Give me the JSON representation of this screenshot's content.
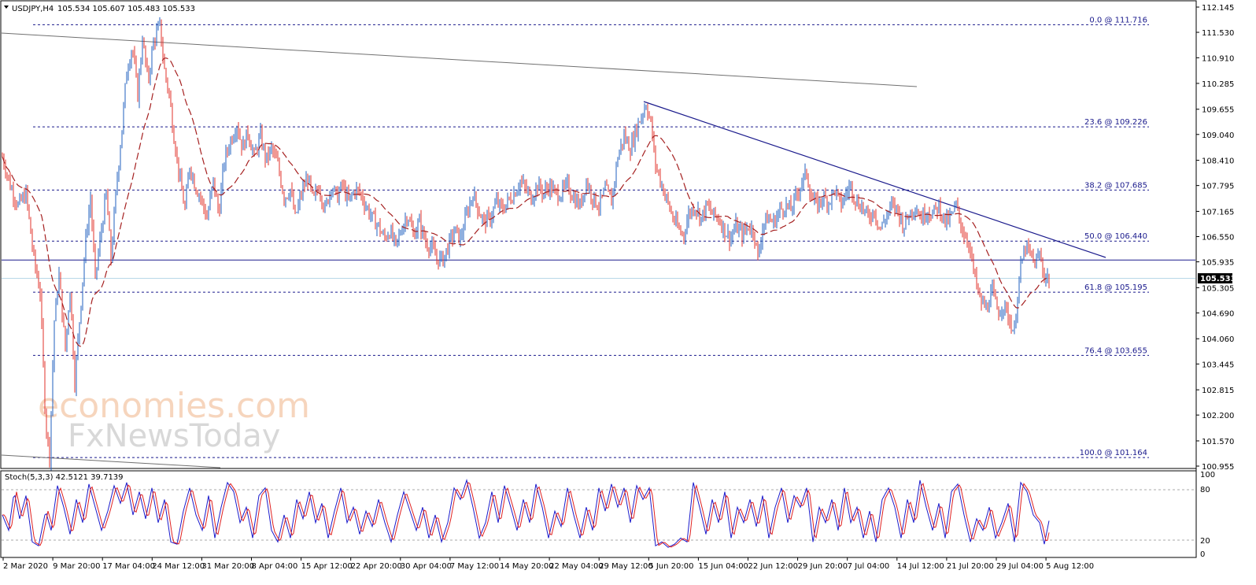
{
  "header": {
    "symbol": "USDJPY,H4",
    "ohlc": "105.534 105.607 105.483 105.533"
  },
  "price_badge": "105.533",
  "watermark": {
    "line1": "economies.com",
    "line2": "FxNewsToday"
  },
  "stoch": {
    "title": "Stoch(5,3,3) 42.5121 39.7139",
    "levels": [
      "100",
      "80",
      "20",
      "0"
    ]
  },
  "colors": {
    "bull": "#1f5fbf",
    "bear": "#e0302a",
    "ma": "#a52020",
    "trend": "#1a1a8c",
    "fib": "#1a1a8c",
    "support": "#1a1a8c",
    "stoch_main": "#1a1acc",
    "stoch_signal": "#e02020"
  },
  "chart_data": {
    "type": "candlestick",
    "y_ticks": [
      "112.145",
      "111.530",
      "110.910",
      "110.285",
      "109.655",
      "109.040",
      "108.410",
      "107.795",
      "107.165",
      "106.550",
      "105.935",
      "105.305",
      "104.690",
      "104.060",
      "103.445",
      "102.815",
      "102.200",
      "101.570",
      "100.955"
    ],
    "x_labels": [
      "2 Mar 2020",
      "9 Mar 20:00",
      "17 Mar 04:00",
      "24 Mar 12:00",
      "31 Mar 20:00",
      "8 Apr 04:00",
      "15 Apr 12:00",
      "22 Apr 20:00",
      "30 Apr 04:00",
      "7 May 12:00",
      "14 May 20:00",
      "22 May 04:00",
      "29 May 12:00",
      "5 Jun 20:00",
      "15 Jun 04:00",
      "22 Jun 12:00",
      "29 Jun 20:00",
      "7 Jul 04:00",
      "14 Jul 12:00",
      "21 Jul 20:00",
      "29 Jul 04:00",
      "5 Aug 12:00"
    ],
    "fib_levels": [
      {
        "label": "0.0 @ 111.716",
        "value": 111.716
      },
      {
        "label": "23.6 @ 109.226",
        "value": 109.226
      },
      {
        "label": "38.2 @ 107.685",
        "value": 107.685
      },
      {
        "label": "50.0 @ 106.440",
        "value": 106.44
      },
      {
        "label": "61.8 @ 105.195",
        "value": 105.195
      },
      {
        "label": "76.4 @ 103.655",
        "value": 103.655
      },
      {
        "label": "100.0 @ 101.164",
        "value": 101.164
      }
    ],
    "support_level": 105.98,
    "current_price": 105.533,
    "price_path": [
      [
        0,
        108.5
      ],
      [
        10,
        107.8
      ],
      [
        20,
        107.3
      ],
      [
        30,
        107.6
      ],
      [
        40,
        106.0
      ],
      [
        48,
        105.2
      ],
      [
        55,
        102.0
      ],
      [
        60,
        101.2
      ],
      [
        66,
        104.5
      ],
      [
        72,
        105.6
      ],
      [
        80,
        103.8
      ],
      [
        86,
        105.3
      ],
      [
        92,
        103.0
      ],
      [
        100,
        105.0
      ],
      [
        106,
        106.5
      ],
      [
        112,
        107.5
      ],
      [
        118,
        105.5
      ],
      [
        125,
        106.6
      ],
      [
        132,
        107.6
      ],
      [
        138,
        106.0
      ],
      [
        145,
        107.8
      ],
      [
        152,
        109.2
      ],
      [
        158,
        110.6
      ],
      [
        165,
        111.2
      ],
      [
        172,
        110.0
      ],
      [
        178,
        111.4
      ],
      [
        185,
        110.3
      ],
      [
        192,
        111.3
      ],
      [
        200,
        111.7
      ],
      [
        206,
        110.6
      ],
      [
        212,
        110.0
      ],
      [
        218,
        109.0
      ],
      [
        225,
        108.0
      ],
      [
        232,
        107.2
      ],
      [
        238,
        108.3
      ],
      [
        245,
        107.8
      ],
      [
        252,
        107.5
      ],
      [
        260,
        107.0
      ],
      [
        268,
        107.9
      ],
      [
        275,
        107.1
      ],
      [
        282,
        108.4
      ],
      [
        290,
        108.9
      ],
      [
        298,
        109.3
      ],
      [
        305,
        108.7
      ],
      [
        312,
        109.1
      ],
      [
        320,
        108.5
      ],
      [
        328,
        109.0
      ],
      [
        335,
        108.4
      ],
      [
        342,
        108.7
      ],
      [
        350,
        108.3
      ],
      [
        358,
        107.5
      ],
      [
        366,
        107.7
      ],
      [
        372,
        107.0
      ],
      [
        380,
        107.6
      ],
      [
        388,
        108.0
      ],
      [
        395,
        107.4
      ],
      [
        402,
        107.8
      ],
      [
        410,
        107.2
      ],
      [
        418,
        107.8
      ],
      [
        425,
        107.5
      ],
      [
        432,
        107.8
      ],
      [
        440,
        107.4
      ],
      [
        448,
        107.7
      ],
      [
        455,
        107.6
      ],
      [
        462,
        107.3
      ],
      [
        470,
        107.0
      ],
      [
        478,
        106.8
      ],
      [
        485,
        106.5
      ],
      [
        492,
        106.7
      ],
      [
        500,
        106.3
      ],
      [
        508,
        106.8
      ],
      [
        515,
        107.1
      ],
      [
        522,
        106.6
      ],
      [
        530,
        106.9
      ],
      [
        538,
        106.4
      ],
      [
        545,
        106.3
      ],
      [
        552,
        106.0
      ],
      [
        560,
        106.0
      ],
      [
        568,
        106.4
      ],
      [
        575,
        106.7
      ],
      [
        582,
        106.5
      ],
      [
        590,
        107.1
      ],
      [
        598,
        107.6
      ],
      [
        605,
        107.2
      ],
      [
        612,
        106.9
      ],
      [
        620,
        107.0
      ],
      [
        628,
        107.4
      ],
      [
        635,
        107.2
      ],
      [
        642,
        107.4
      ],
      [
        650,
        107.6
      ],
      [
        658,
        107.9
      ],
      [
        665,
        107.7
      ],
      [
        672,
        107.5
      ],
      [
        680,
        107.8
      ],
      [
        688,
        107.6
      ],
      [
        695,
        107.8
      ],
      [
        702,
        107.6
      ],
      [
        710,
        107.6
      ],
      [
        718,
        107.8
      ],
      [
        726,
        107.5
      ],
      [
        734,
        107.3
      ],
      [
        742,
        107.9
      ],
      [
        750,
        107.5
      ],
      [
        758,
        107.3
      ],
      [
        766,
        107.7
      ],
      [
        774,
        107.4
      ],
      [
        782,
        108.5
      ],
      [
        790,
        109.0
      ],
      [
        798,
        108.7
      ],
      [
        806,
        109.2
      ],
      [
        812,
        109.5
      ],
      [
        818,
        109.8
      ],
      [
        824,
        109.3
      ],
      [
        830,
        108.3
      ],
      [
        838,
        107.8
      ],
      [
        845,
        107.4
      ],
      [
        852,
        107.0
      ],
      [
        860,
        106.7
      ],
      [
        866,
        106.6
      ],
      [
        872,
        107.1
      ],
      [
        880,
        107.3
      ],
      [
        888,
        107.0
      ],
      [
        895,
        107.3
      ],
      [
        902,
        107.1
      ],
      [
        910,
        107.0
      ],
      [
        918,
        106.7
      ],
      [
        925,
        106.5
      ],
      [
        932,
        106.8
      ],
      [
        940,
        106.6
      ],
      [
        948,
        106.8
      ],
      [
        955,
        106.7
      ],
      [
        960,
        106.0
      ],
      [
        966,
        106.8
      ],
      [
        972,
        107.0
      ],
      [
        980,
        106.9
      ],
      [
        988,
        107.2
      ],
      [
        995,
        107.3
      ],
      [
        1002,
        107.2
      ],
      [
        1010,
        107.6
      ],
      [
        1016,
        107.9
      ],
      [
        1022,
        108.1
      ],
      [
        1028,
        107.5
      ],
      [
        1035,
        107.3
      ],
      [
        1042,
        107.5
      ],
      [
        1050,
        107.4
      ],
      [
        1058,
        107.7
      ],
      [
        1065,
        107.3
      ],
      [
        1072,
        107.6
      ],
      [
        1078,
        107.8
      ],
      [
        1085,
        107.4
      ],
      [
        1092,
        107.3
      ],
      [
        1100,
        107.0
      ],
      [
        1108,
        107.2
      ],
      [
        1115,
        106.7
      ],
      [
        1122,
        107.0
      ],
      [
        1130,
        107.3
      ],
      [
        1138,
        107.2
      ],
      [
        1145,
        106.8
      ],
      [
        1152,
        107.1
      ],
      [
        1160,
        107.3
      ],
      [
        1168,
        107.0
      ],
      [
        1175,
        107.2
      ],
      [
        1182,
        107.1
      ],
      [
        1190,
        107.3
      ],
      [
        1198,
        106.9
      ],
      [
        1205,
        107.0
      ],
      [
        1212,
        107.3
      ],
      [
        1220,
        106.7
      ],
      [
        1228,
        106.4
      ],
      [
        1235,
        105.6
      ],
      [
        1242,
        105.0
      ],
      [
        1250,
        104.8
      ],
      [
        1258,
        105.2
      ],
      [
        1265,
        104.7
      ],
      [
        1272,
        104.9
      ],
      [
        1280,
        104.5
      ],
      [
        1286,
        104.2
      ],
      [
        1290,
        105.2
      ],
      [
        1295,
        105.9
      ],
      [
        1300,
        106.3
      ],
      [
        1306,
        106.1
      ],
      [
        1312,
        105.9
      ],
      [
        1318,
        106.1
      ],
      [
        1324,
        105.6
      ],
      [
        1330,
        105.53
      ]
    ],
    "stoch_path": [
      [
        0,
        50
      ],
      [
        8,
        30
      ],
      [
        15,
        80
      ],
      [
        22,
        45
      ],
      [
        30,
        75
      ],
      [
        38,
        15
      ],
      [
        46,
        10
      ],
      [
        55,
        55
      ],
      [
        62,
        30
      ],
      [
        70,
        88
      ],
      [
        78,
        60
      ],
      [
        86,
        25
      ],
      [
        94,
        70
      ],
      [
        102,
        40
      ],
      [
        110,
        90
      ],
      [
        118,
        60
      ],
      [
        126,
        30
      ],
      [
        134,
        55
      ],
      [
        142,
        88
      ],
      [
        150,
        65
      ],
      [
        158,
        92
      ],
      [
        166,
        50
      ],
      [
        174,
        80
      ],
      [
        182,
        45
      ],
      [
        190,
        85
      ],
      [
        198,
        40
      ],
      [
        206,
        70
      ],
      [
        214,
        15
      ],
      [
        222,
        12
      ],
      [
        230,
        55
      ],
      [
        238,
        85
      ],
      [
        246,
        50
      ],
      [
        254,
        30
      ],
      [
        262,
        75
      ],
      [
        270,
        20
      ],
      [
        278,
        60
      ],
      [
        286,
        92
      ],
      [
        294,
        80
      ],
      [
        302,
        40
      ],
      [
        310,
        60
      ],
      [
        318,
        20
      ],
      [
        326,
        75
      ],
      [
        334,
        85
      ],
      [
        342,
        30
      ],
      [
        350,
        15
      ],
      [
        358,
        50
      ],
      [
        366,
        20
      ],
      [
        374,
        70
      ],
      [
        382,
        45
      ],
      [
        390,
        80
      ],
      [
        398,
        40
      ],
      [
        406,
        65
      ],
      [
        414,
        20
      ],
      [
        422,
        55
      ],
      [
        430,
        85
      ],
      [
        438,
        40
      ],
      [
        446,
        60
      ],
      [
        454,
        25
      ],
      [
        462,
        55
      ],
      [
        470,
        35
      ],
      [
        478,
        70
      ],
      [
        486,
        40
      ],
      [
        494,
        15
      ],
      [
        502,
        50
      ],
      [
        510,
        80
      ],
      [
        518,
        55
      ],
      [
        526,
        30
      ],
      [
        534,
        60
      ],
      [
        542,
        20
      ],
      [
        550,
        50
      ],
      [
        558,
        15
      ],
      [
        566,
        40
      ],
      [
        574,
        85
      ],
      [
        582,
        70
      ],
      [
        590,
        95
      ],
      [
        598,
        60
      ],
      [
        606,
        20
      ],
      [
        614,
        40
      ],
      [
        622,
        80
      ],
      [
        630,
        40
      ],
      [
        638,
        88
      ],
      [
        646,
        60
      ],
      [
        654,
        30
      ],
      [
        662,
        70
      ],
      [
        670,
        40
      ],
      [
        678,
        90
      ],
      [
        686,
        60
      ],
      [
        694,
        20
      ],
      [
        702,
        55
      ],
      [
        710,
        35
      ],
      [
        718,
        85
      ],
      [
        726,
        50
      ],
      [
        734,
        20
      ],
      [
        742,
        60
      ],
      [
        750,
        30
      ],
      [
        758,
        85
      ],
      [
        766,
        55
      ],
      [
        774,
        90
      ],
      [
        782,
        60
      ],
      [
        790,
        85
      ],
      [
        798,
        40
      ],
      [
        806,
        88
      ],
      [
        814,
        70
      ],
      [
        822,
        85
      ],
      [
        830,
        10
      ],
      [
        838,
        15
      ],
      [
        846,
        8
      ],
      [
        854,
        12
      ],
      [
        862,
        20
      ],
      [
        870,
        15
      ],
      [
        878,
        92
      ],
      [
        886,
        60
      ],
      [
        894,
        25
      ],
      [
        902,
        70
      ],
      [
        910,
        40
      ],
      [
        918,
        80
      ],
      [
        926,
        20
      ],
      [
        934,
        60
      ],
      [
        942,
        40
      ],
      [
        950,
        70
      ],
      [
        958,
        35
      ],
      [
        966,
        75
      ],
      [
        974,
        20
      ],
      [
        982,
        60
      ],
      [
        990,
        85
      ],
      [
        998,
        40
      ],
      [
        1006,
        75
      ],
      [
        1014,
        60
      ],
      [
        1022,
        85
      ],
      [
        1030,
        15
      ],
      [
        1038,
        60
      ],
      [
        1046,
        40
      ],
      [
        1054,
        70
      ],
      [
        1062,
        30
      ],
      [
        1070,
        85
      ],
      [
        1078,
        40
      ],
      [
        1086,
        60
      ],
      [
        1094,
        20
      ],
      [
        1102,
        55
      ],
      [
        1110,
        15
      ],
      [
        1118,
        70
      ],
      [
        1126,
        85
      ],
      [
        1134,
        60
      ],
      [
        1142,
        20
      ],
      [
        1150,
        70
      ],
      [
        1158,
        40
      ],
      [
        1166,
        95
      ],
      [
        1174,
        60
      ],
      [
        1182,
        30
      ],
      [
        1190,
        65
      ],
      [
        1198,
        20
      ],
      [
        1206,
        80
      ],
      [
        1214,
        90
      ],
      [
        1222,
        50
      ],
      [
        1230,
        15
      ],
      [
        1238,
        45
      ],
      [
        1246,
        30
      ],
      [
        1254,
        60
      ],
      [
        1262,
        20
      ],
      [
        1270,
        40
      ],
      [
        1278,
        65
      ],
      [
        1286,
        15
      ],
      [
        1294,
        92
      ],
      [
        1302,
        80
      ],
      [
        1310,
        50
      ],
      [
        1318,
        40
      ],
      [
        1324,
        12
      ],
      [
        1330,
        42.5
      ]
    ]
  }
}
